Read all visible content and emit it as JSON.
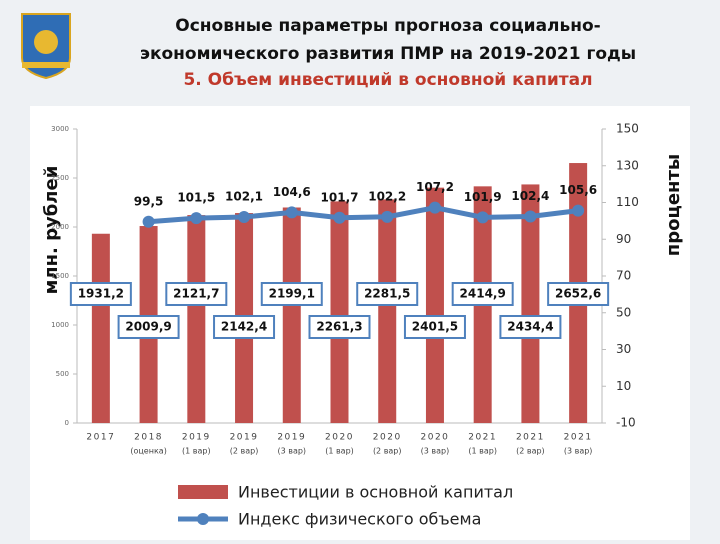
{
  "chart_data": {
    "type": "bar-line",
    "title_lines": [
      "Основные параметры прогноза социально-",
      "экономического развития ПМР на 2019-2021 годы"
    ],
    "subtitle": "5. Объем инвестиций в основной капитал",
    "y_label": "млн. рублей",
    "y2_label": "проценты",
    "categories": [
      "2017",
      "2018",
      "2019",
      "2019",
      "2019",
      "2020",
      "2020",
      "2020",
      "2021",
      "2021",
      "2021"
    ],
    "category_notes": [
      null,
      "(оценка)",
      "(1 вар)",
      "(2 вар)",
      "(3 вар)",
      "(1 вар)",
      "(2 вар)",
      "(3 вар)",
      "(1 вар)",
      "(2 вар)",
      "(3 вар)"
    ],
    "series": [
      {
        "name": "Инвестиции в основной капитал",
        "color": "#c0504d",
        "values": [
          1931.2,
          2009.9,
          2121.7,
          2142.4,
          2199.1,
          2261.3,
          2281.5,
          2401.5,
          2414.9,
          2434.4,
          2652.6
        ],
        "value_labels": [
          "1931,2",
          "2009,9",
          "2121,7",
          "2142,4",
          "2199,1",
          "2261,3",
          "2281,5",
          "2401,5",
          "2414,9",
          "2434,4",
          "2652,6"
        ]
      },
      {
        "name": "Индекс физического объема",
        "color": "#4f81bd",
        "axis": "y2",
        "values": [
          null,
          99.5,
          101.5,
          102.1,
          104.6,
          101.7,
          102.2,
          107.2,
          101.9,
          102.4,
          105.6
        ],
        "value_labels": [
          null,
          "99,5",
          "101,5",
          "102,1",
          "104,6",
          "101,7",
          "102,2",
          "107,2",
          "101,9",
          "102,4",
          "105,6"
        ]
      }
    ],
    "ylim": [
      0,
      3000
    ],
    "yticks": [
      0,
      500,
      1000,
      1500,
      2000,
      2500,
      3000
    ],
    "y2lim": [
      -10,
      150
    ],
    "y2ticks": [
      -10,
      10,
      30,
      50,
      70,
      90,
      110,
      130,
      150
    ]
  }
}
